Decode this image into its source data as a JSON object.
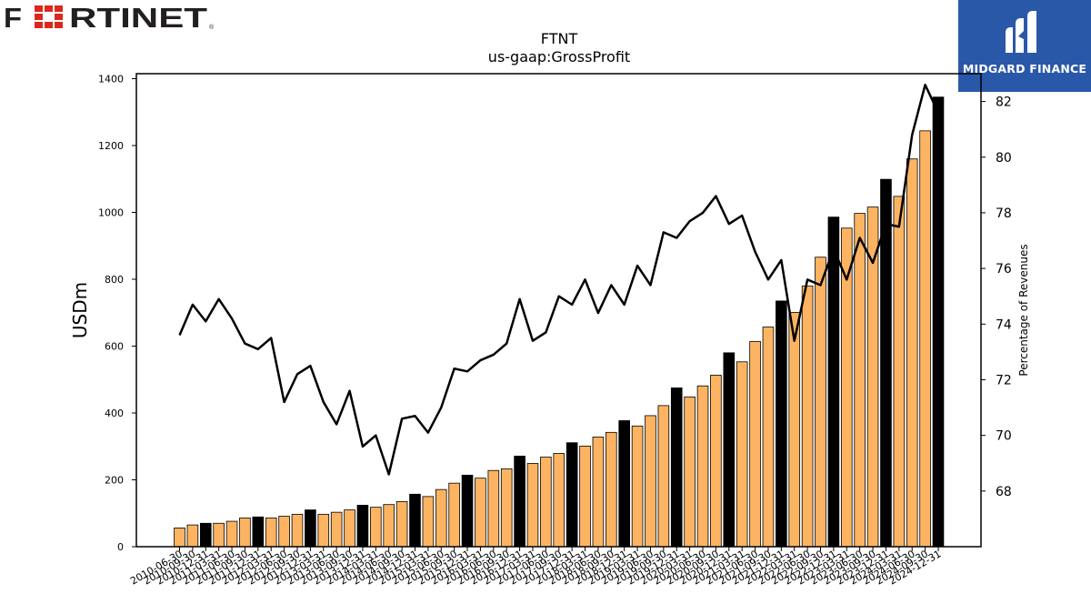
{
  "logos": {
    "left_text": "F RTINET",
    "right_text": "MIDGARD FINANCE"
  },
  "chart_data": {
    "type": "bar",
    "title": "FTNT",
    "subtitle": "us-gaap:GrossProfit",
    "ylabel": "USDm",
    "y2label": "Percentage of Revenues",
    "ylim": [
      0,
      1415
    ],
    "y2lim": [
      66.0,
      83.0
    ],
    "yticks": [
      0,
      200,
      400,
      600,
      800,
      1000,
      1200,
      1400
    ],
    "y2ticks": [
      68,
      70,
      72,
      74,
      76,
      78,
      80,
      82
    ],
    "colors": {
      "bar": "#fdb462",
      "bar_highlight": "#000000",
      "line": "#000000"
    },
    "categories": [
      "2010-06-30",
      "2010-09-30",
      "2010-12-31",
      "2011-03-31",
      "2011-06-30",
      "2011-09-30",
      "2011-12-31",
      "2012-03-31",
      "2012-06-30",
      "2012-09-30",
      "2012-12-31",
      "2013-03-31",
      "2013-06-30",
      "2013-09-30",
      "2013-12-31",
      "2014-03-31",
      "2014-06-30",
      "2014-09-30",
      "2014-12-31",
      "2015-03-31",
      "2015-06-30",
      "2015-09-30",
      "2015-12-31",
      "2016-03-31",
      "2016-06-30",
      "2016-09-30",
      "2016-12-31",
      "2017-03-31",
      "2017-06-30",
      "2017-09-30",
      "2017-12-31",
      "2018-03-31",
      "2018-06-30",
      "2018-09-30",
      "2018-12-31",
      "2019-03-31",
      "2019-06-30",
      "2019-09-30",
      "2019-12-31",
      "2020-03-31",
      "2020-06-30",
      "2020-09-30",
      "2020-12-31",
      "2021-03-31",
      "2021-06-30",
      "2021-09-30",
      "2021-12-31",
      "2022-03-31",
      "2022-06-30",
      "2022-09-30",
      "2022-12-31",
      "2023-03-31",
      "2023-06-30",
      "2023-09-30",
      "2023-12-31",
      "2024-03-31",
      "2024-06-30",
      "2024-09-30",
      "2024-12-31"
    ],
    "tick_labels": [
      "2010-06-30",
      "2010-09-30",
      "2010-12-31",
      "2011-03-31",
      "2011-06-30",
      "2011-09-30",
      "2011-12-31",
      "2012-03-31",
      "2012-06-30",
      "2012-09-30",
      "2012-12-31",
      "2013-03-31",
      "2013-06-30",
      "2013-09-30",
      "2013-12-31",
      "2014-03-31",
      "2014-06-30",
      "2014-09-30",
      "2014-12-31",
      "2015-03-31",
      "2015-06-30",
      "2015-09-30",
      "2015-12-31",
      "2016-03-31",
      "2016-06-30",
      "2016-09-30",
      "2016-12-31",
      "2017-03-31",
      "2017-06-30",
      "2017-09-30",
      "2017-12-31",
      "2018-03-31",
      "2018-06-30",
      "2018-09-30",
      "2018-12-31",
      "2019-03-31",
      "2019-06-30",
      "2019-09-30",
      "2019-12-31",
      "2020-03-31",
      "2020-06-30",
      "2020-09-30",
      "2020-12-31",
      "2021-03-31",
      "2021-06-30",
      "2021-09-30",
      "2021-12-31",
      "2022-03-31",
      "2022-06-30",
      "2022-09-30",
      "2022-12-31",
      "2023-03-31",
      "2023-06-30",
      "2023-09-30",
      "2023-12-31",
      "2024-03-31",
      "2024-06-30",
      "2024-09-30",
      "2024-12-31"
    ],
    "series": [
      {
        "values": [
          56,
          65,
          70,
          70,
          76,
          86,
          89,
          86,
          91,
          97,
          110,
          97,
          103,
          110,
          124,
          118,
          126,
          135,
          157,
          150,
          171,
          190,
          214,
          205,
          228,
          233,
          271,
          249,
          268,
          279,
          311,
          301,
          328,
          342,
          377,
          361,
          392,
          422,
          475,
          448,
          481,
          513,
          580,
          553,
          614,
          657,
          735,
          701,
          780,
          866,
          986,
          953,
          997,
          1016,
          1099,
          1048,
          1160,
          1244,
          1345
        ],
        "highlight": [
          false,
          false,
          true,
          false,
          false,
          false,
          true,
          false,
          false,
          false,
          true,
          false,
          false,
          false,
          true,
          false,
          false,
          false,
          true,
          false,
          false,
          false,
          true,
          false,
          false,
          false,
          true,
          false,
          false,
          false,
          true,
          false,
          false,
          false,
          true,
          false,
          false,
          false,
          true,
          false,
          false,
          false,
          true,
          false,
          false,
          false,
          true,
          false,
          false,
          false,
          true,
          false,
          false,
          false,
          true,
          false,
          false,
          false,
          true
        ]
      },
      {
        "type": "line",
        "axis": "right",
        "values": [
          73.6,
          74.7,
          74.1,
          74.9,
          74.2,
          73.3,
          73.1,
          73.5,
          71.2,
          72.2,
          72.5,
          71.2,
          70.4,
          71.6,
          69.6,
          70.0,
          68.6,
          70.6,
          70.7,
          70.1,
          71.0,
          72.4,
          72.3,
          72.7,
          72.9,
          73.3,
          74.9,
          73.4,
          73.7,
          75.0,
          74.7,
          75.6,
          74.4,
          75.4,
          74.7,
          76.1,
          75.4,
          77.3,
          77.1,
          77.7,
          78.0,
          78.6,
          77.6,
          77.9,
          76.6,
          75.6,
          76.3,
          73.4,
          75.6,
          75.4,
          76.7,
          75.6,
          77.1,
          76.2,
          77.6,
          77.5,
          80.8,
          82.6,
          81.6
        ]
      }
    ]
  }
}
